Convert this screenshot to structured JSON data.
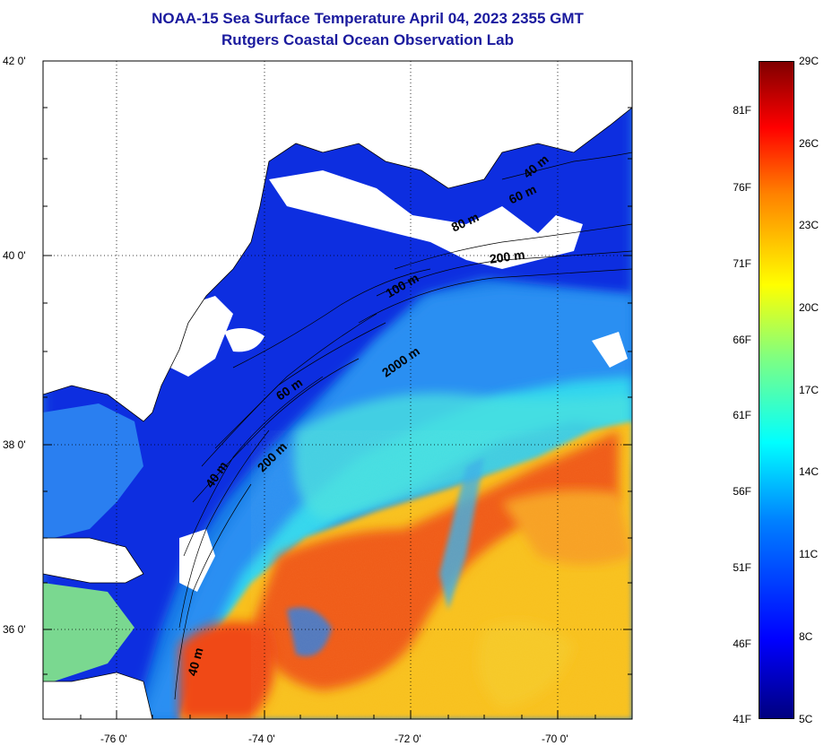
{
  "header": {
    "title": "NOAA-15 Sea Surface Temperature April 04, 2023 2355 GMT",
    "subtitle": "Rutgers Coastal Ocean Observation Lab"
  },
  "map": {
    "lat_labels": [
      "42 0'",
      "40 0'",
      "38 0'",
      "36 0'"
    ],
    "lon_labels": [
      "-76 0'",
      "-74 0'",
      "-72 0'",
      "-70 0'"
    ],
    "depth_contour_labels": [
      "40 m",
      "60 m",
      "80 m",
      "200 m",
      "100 m",
      "2000 m",
      "60 m",
      "200 m",
      "40 m",
      "40 m"
    ],
    "colors": {
      "land": "#ffffff",
      "cold_water": "#0a2ee0",
      "cool_water": "#2a7ff0",
      "mid_water": "#28d8ee",
      "warm_water": "#f8c01a",
      "hot_water": "#f04010"
    }
  },
  "colorbar": {
    "fahrenheit_labels": [
      "81F",
      "76F",
      "71F",
      "66F",
      "61F",
      "56F",
      "51F",
      "46F",
      "41F"
    ],
    "celsius_labels": [
      "29C",
      "26C",
      "23C",
      "20C",
      "17C",
      "14C",
      "11C",
      "8C",
      "5C"
    ]
  }
}
